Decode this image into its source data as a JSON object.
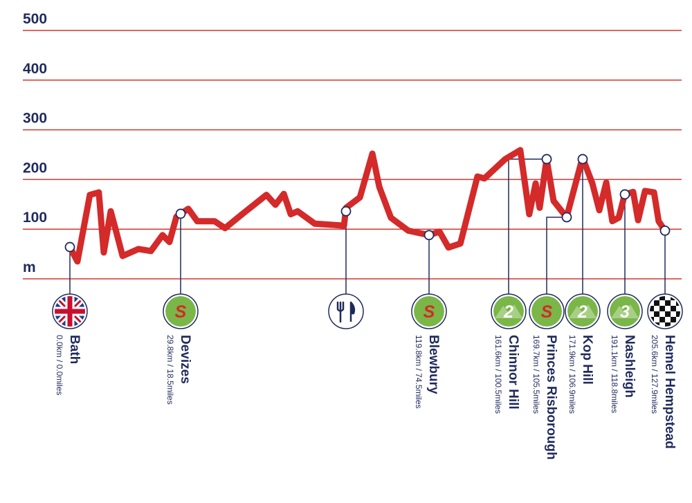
{
  "chart_data": {
    "type": "line",
    "color": "#d42a2a",
    "grid_color": "#d4372c",
    "ylim": [
      0,
      500
    ],
    "yticks": [
      {
        "value": 0,
        "label": "m"
      },
      100,
      200,
      300,
      400,
      500
    ],
    "xlim": [
      0,
      205.6
    ],
    "series": [
      {
        "name": null,
        "color": "#d42a2a",
        "x": [
          0.0,
          2.6,
          6.9,
          10.0,
          11.7,
          14.1,
          16.0,
          18.2,
          23.7,
          28.0,
          32.0,
          34.4,
          36.8,
          40.9,
          44.0,
          50.0,
          53.6,
          59.5,
          67.9,
          71.0,
          73.9,
          76.3,
          78.7,
          84.6,
          94.7,
          95.4,
          100.2,
          104.5,
          106.9,
          110.9,
          116.9,
          124.1,
          127.7,
          130.8,
          134.9,
          140.8,
          143.2,
          150.4,
          155.6,
          158.7,
          160.9,
          162.3,
          164.7,
          167.1,
          171.6,
          177.1,
          180.5,
          182.9,
          185.3,
          187.4,
          189.6,
          191.7,
          194.6,
          196.3,
          198.7,
          201.8,
          203.4,
          205.6
        ],
        "values": [
          64,
          35,
          169,
          174,
          53,
          136,
          95,
          46,
          60,
          56,
          88,
          74,
          125,
          141,
          116,
          116,
          102,
          130,
          169,
          149,
          171,
          130,
          136,
          111,
          107,
          143,
          164,
          252,
          185,
          123,
          97,
          88,
          95,
          63,
          71,
          206,
          202,
          241,
          259,
          130,
          192,
          143,
          241,
          157,
          124,
          244,
          192,
          138,
          194,
          116,
          123,
          170,
          175,
          118,
          177,
          174,
          116,
          97
        ]
      }
    ],
    "waypoints": [
      {
        "name": "Bath",
        "distance": "0.0km / 0.0miles",
        "icon": "flag",
        "elevation": 64
      },
      {
        "name": "Devizes",
        "distance": "29.8km / 18.5miles",
        "icon": "sprint",
        "icon_text": "S",
        "elevation": 131
      },
      {
        "icon": "food",
        "elevation": 136
      },
      {
        "name": "Blewbury",
        "distance": "119.8km / 74.5miles",
        "icon": "sprint",
        "icon_text": "S",
        "elevation": 88
      },
      {
        "name": "Chinnor Hill",
        "distance": "161.6km / 100.5miles",
        "icon": "climb",
        "icon_text": "2",
        "elevation": 241
      },
      {
        "name": "Princes Risborough",
        "distance": "169.7km / 105.5miles",
        "icon": "sprint",
        "icon_text": "S",
        "elevation": 124
      },
      {
        "name": "Kop Hill",
        "distance": "171.9km / 106.9miles",
        "icon": "climb",
        "icon_text": "2",
        "elevation": 241
      },
      {
        "name": "Nashleigh",
        "distance": "191.1km / 118.8miles",
        "icon": "climb",
        "icon_text": "3",
        "elevation": 170
      },
      {
        "name": "Hemel Hempstead",
        "distance": "205.6km / 127.9miles",
        "icon": "finish",
        "elevation": 97
      }
    ]
  }
}
